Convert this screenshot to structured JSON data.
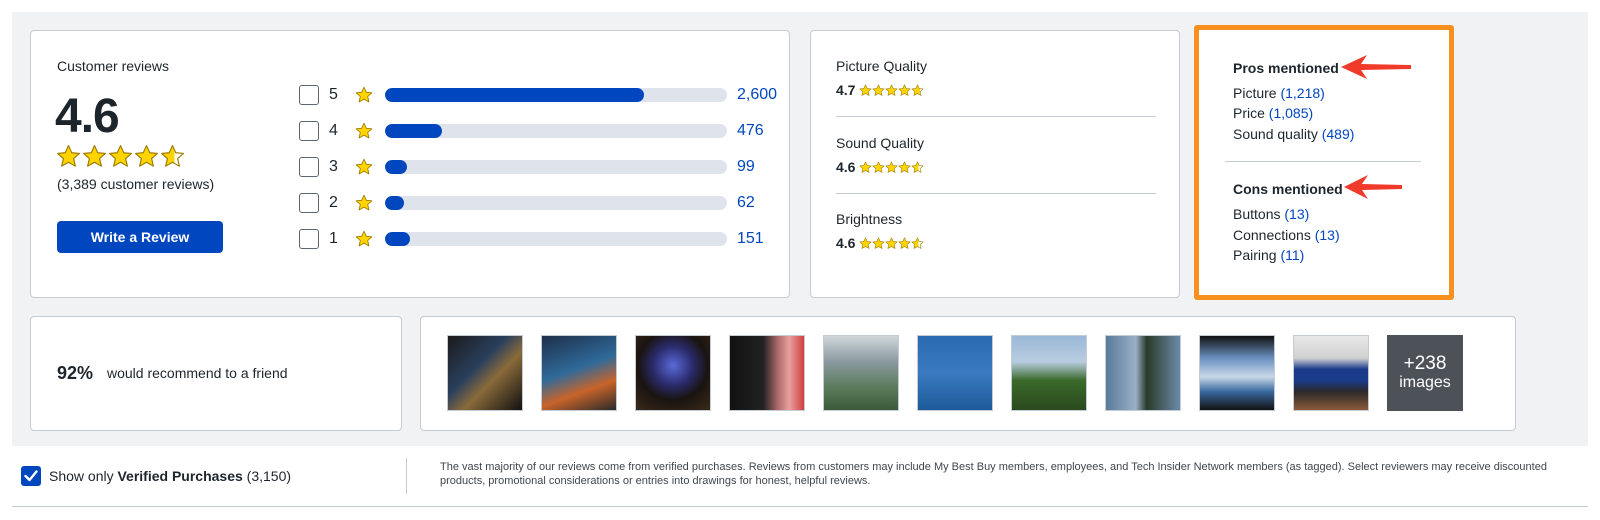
{
  "summary": {
    "title": "Customer reviews",
    "rating": "4.6",
    "rating_value": 4.6,
    "review_count_text": "(3,389 customer reviews)",
    "write_review_label": "Write a Review",
    "distribution": [
      {
        "stars": "5",
        "count": "2,600",
        "fraction": 0.757
      },
      {
        "stars": "4",
        "count": "476",
        "fraction": 0.168
      },
      {
        "stars": "3",
        "count": "99",
        "fraction": 0.065
      },
      {
        "stars": "2",
        "count": "62",
        "fraction": 0.055
      },
      {
        "stars": "1",
        "count": "151",
        "fraction": 0.072
      }
    ]
  },
  "sub_ratings": [
    {
      "name": "Picture Quality",
      "value": "4.7"
    },
    {
      "name": "Sound Quality",
      "value": "4.6"
    },
    {
      "name": "Brightness",
      "value": "4.6"
    }
  ],
  "pros": {
    "heading": "Pros mentioned",
    "items": [
      {
        "label": "Picture",
        "count": "(1,218)"
      },
      {
        "label": "Price",
        "count": "(1,085)"
      },
      {
        "label": "Sound quality",
        "count": "(489)"
      }
    ]
  },
  "cons": {
    "heading": "Cons mentioned",
    "items": [
      {
        "label": "Buttons",
        "count": "(13)"
      },
      {
        "label": "Connections",
        "count": "(13)"
      },
      {
        "label": "Pairing",
        "count": "(11)"
      }
    ]
  },
  "recommend": {
    "percent": "92%",
    "text": "would recommend to a friend"
  },
  "images": {
    "more_count": "+238",
    "more_label": "images",
    "thumb_icons": [
      "tv-home-screen-photo",
      "tv-menu-photo",
      "tv-in-room-photo",
      "tv-streaming-photo",
      "city-view-photo",
      "water-birds-photo",
      "trees-photo",
      "traffic-light-photo",
      "skyline-photo",
      "pureflix-tv-photo"
    ]
  },
  "verified": {
    "prefix": "Show only ",
    "bold": "Verified Purchases",
    "count": " (3,150)",
    "checked": true
  },
  "disclaimer": "The vast majority of our reviews come from verified purchases. Reviews from customers may include My Best Buy members, employees, and Tech Insider Network members (as tagged). Select reviewers may receive discounted products, promotional considerations or entries into drawings for honest, helpful reviews.",
  "colors": {
    "accent_blue": "#0046be",
    "star_yellow": "#ffd400",
    "highlight_orange": "#f7901e",
    "arrow_red": "#f03a2a"
  }
}
